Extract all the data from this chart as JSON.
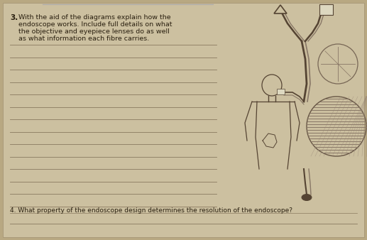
{
  "bg_color": "#b8a882",
  "paper_color": "#ccc0a0",
  "text_color": "#2a2010",
  "line_color": "#8a7a60",
  "q3_num": "3.",
  "q3_line1": "With the aid of the diagrams explain how the",
  "q3_line2": "endoscope works. Include full details on what",
  "q3_line3": "the objective and eyepiece lenses do as well",
  "q3_line4": "as what information each fibre carries.",
  "q4_text": "4. What property of the endoscope design determines the resolution of the endoscope?",
  "num_lines_q3": 14,
  "diagram_color": "#554433",
  "fiber_color": "#665544",
  "fiber_fill": "#887766"
}
